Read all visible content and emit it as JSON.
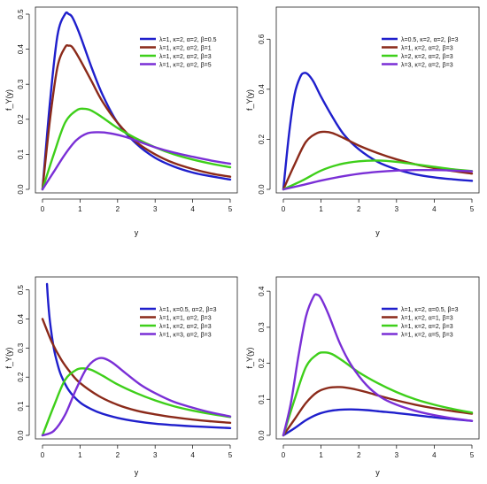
{
  "chart_data": [
    {
      "type": "line",
      "xlabel": "y",
      "ylabel": "f_Y(y)",
      "xlim": [
        0,
        5
      ],
      "ylim": [
        0,
        0.5
      ],
      "xticks": [
        "0",
        "1",
        "2",
        "3",
        "4",
        "5"
      ],
      "yticks": [
        "0.0",
        "0.1",
        "0.2",
        "0.3",
        "0.4",
        "0.5"
      ],
      "legend_position": "top-right",
      "series": [
        {
          "name": "λ=1, κ=2, α=2, β=0.5",
          "color": "#1f1fcc",
          "x": [
            0,
            0.2,
            0.4,
            0.6,
            0.7,
            0.8,
            1.0,
            1.3,
            1.6,
            2.0,
            2.5,
            3.0,
            3.5,
            4.0,
            4.5,
            5.0
          ],
          "y": [
            0,
            0.25,
            0.44,
            0.5,
            0.5,
            0.49,
            0.44,
            0.35,
            0.27,
            0.19,
            0.13,
            0.09,
            0.065,
            0.048,
            0.037,
            0.028
          ]
        },
        {
          "name": "λ=1, κ=2, α=2, β=1",
          "color": "#8b2a1a",
          "x": [
            0,
            0.2,
            0.4,
            0.6,
            0.7,
            0.8,
            1.0,
            1.3,
            1.6,
            2.0,
            2.5,
            3.0,
            3.5,
            4.0,
            4.5,
            5.0
          ],
          "y": [
            0,
            0.2,
            0.35,
            0.405,
            0.41,
            0.405,
            0.37,
            0.31,
            0.25,
            0.19,
            0.135,
            0.1,
            0.075,
            0.058,
            0.045,
            0.036
          ]
        },
        {
          "name": "λ=1, κ=2, α=2, β=3",
          "color": "#3ecf1a",
          "x": [
            0,
            0.3,
            0.6,
            0.9,
            1.1,
            1.3,
            1.6,
            2.0,
            2.5,
            3.0,
            3.5,
            4.0,
            4.5,
            5.0
          ],
          "y": [
            0,
            0.1,
            0.19,
            0.225,
            0.23,
            0.225,
            0.205,
            0.175,
            0.145,
            0.12,
            0.1,
            0.085,
            0.073,
            0.063
          ]
        },
        {
          "name": "λ=1, κ=2, α=2, β=5",
          "color": "#7a2fd6",
          "x": [
            0,
            0.3,
            0.6,
            0.9,
            1.2,
            1.5,
            1.8,
            2.2,
            2.6,
            3.0,
            3.5,
            4.0,
            4.5,
            5.0
          ],
          "y": [
            0,
            0.05,
            0.1,
            0.14,
            0.16,
            0.163,
            0.16,
            0.15,
            0.135,
            0.12,
            0.105,
            0.093,
            0.082,
            0.073
          ]
        }
      ]
    },
    {
      "type": "line",
      "xlabel": "y",
      "ylabel": "f_Y(y)",
      "xlim": [
        0,
        5
      ],
      "ylim": [
        0,
        0.7
      ],
      "xticks": [
        "0",
        "1",
        "2",
        "3",
        "4",
        "5"
      ],
      "yticks": [
        "0.0",
        "0.2",
        "0.4",
        "0.6"
      ],
      "legend_position": "top-right",
      "series": [
        {
          "name": "λ=0.5, κ=2, α=2, β=3",
          "color": "#1f1fcc",
          "x": [
            0,
            0.15,
            0.3,
            0.45,
            0.55,
            0.65,
            0.8,
            1.0,
            1.3,
            1.6,
            2.0,
            2.5,
            3.0,
            3.5,
            4.0,
            4.5,
            5.0
          ],
          "y": [
            0,
            0.22,
            0.38,
            0.45,
            0.465,
            0.46,
            0.43,
            0.37,
            0.29,
            0.22,
            0.16,
            0.11,
            0.08,
            0.06,
            0.048,
            0.04,
            0.034
          ]
        },
        {
          "name": "λ=1, κ=2, α=2, β=3",
          "color": "#8b2a1a",
          "x": [
            0,
            0.3,
            0.6,
            0.9,
            1.1,
            1.3,
            1.6,
            2.0,
            2.5,
            3.0,
            3.5,
            4.0,
            4.5,
            5.0
          ],
          "y": [
            0,
            0.1,
            0.19,
            0.225,
            0.23,
            0.225,
            0.205,
            0.175,
            0.145,
            0.12,
            0.1,
            0.085,
            0.073,
            0.063
          ]
        },
        {
          "name": "λ=2, κ=2, α=2, β=3",
          "color": "#3ecf1a",
          "x": [
            0,
            0.5,
            1.0,
            1.5,
            2.0,
            2.5,
            3.0,
            3.5,
            4.0,
            4.5,
            5.0
          ],
          "y": [
            0,
            0.035,
            0.075,
            0.1,
            0.112,
            0.115,
            0.11,
            0.1,
            0.09,
            0.08,
            0.073
          ]
        },
        {
          "name": "λ=3, κ=2, α=2, β=3",
          "color": "#7a2fd6",
          "x": [
            0,
            0.5,
            1.0,
            1.5,
            2.0,
            2.5,
            3.0,
            3.5,
            4.0,
            4.5,
            5.0
          ],
          "y": [
            0,
            0.017,
            0.035,
            0.05,
            0.062,
            0.07,
            0.075,
            0.077,
            0.077,
            0.075,
            0.072
          ]
        }
      ]
    },
    {
      "type": "line",
      "xlabel": "y",
      "ylabel": "f_Y(y)",
      "xlim": [
        0,
        5
      ],
      "ylim": [
        0,
        0.52
      ],
      "xticks": [
        "0",
        "1",
        "2",
        "3",
        "4",
        "5"
      ],
      "yticks": [
        "0.0",
        "0.1",
        "0.2",
        "0.3",
        "0.4",
        "0.5"
      ],
      "legend_position": "top-right",
      "series": [
        {
          "name": "λ=1, κ=0.5, α=2, β=3",
          "color": "#1f1fcc",
          "x": [
            0.12,
            0.15,
            0.2,
            0.3,
            0.4,
            0.5,
            0.7,
            1.0,
            1.3,
            1.6,
            2.0,
            2.5,
            3.0,
            3.5,
            4.0,
            4.5,
            5.0
          ],
          "y": [
            0.52,
            0.46,
            0.39,
            0.3,
            0.245,
            0.205,
            0.155,
            0.113,
            0.09,
            0.074,
            0.06,
            0.048,
            0.04,
            0.035,
            0.031,
            0.028,
            0.025
          ]
        },
        {
          "name": "λ=1, κ=1, α=2, β=3",
          "color": "#8b2a1a",
          "x": [
            0,
            0.25,
            0.5,
            0.75,
            1.0,
            1.5,
            2.0,
            2.5,
            3.0,
            3.5,
            4.0,
            4.5,
            5.0
          ],
          "y": [
            0.4,
            0.32,
            0.26,
            0.215,
            0.18,
            0.135,
            0.105,
            0.085,
            0.072,
            0.062,
            0.054,
            0.048,
            0.043
          ]
        },
        {
          "name": "λ=1, κ=2, α=2, β=3",
          "color": "#3ecf1a",
          "x": [
            0,
            0.3,
            0.6,
            0.9,
            1.1,
            1.3,
            1.6,
            2.0,
            2.5,
            3.0,
            3.5,
            4.0,
            4.5,
            5.0
          ],
          "y": [
            0,
            0.1,
            0.19,
            0.225,
            0.23,
            0.225,
            0.205,
            0.175,
            0.145,
            0.12,
            0.1,
            0.085,
            0.073,
            0.063
          ]
        },
        {
          "name": "λ=1, κ=3, α=2, β=3",
          "color": "#7a2fd6",
          "x": [
            0,
            0.3,
            0.6,
            0.9,
            1.2,
            1.5,
            1.8,
            2.2,
            2.6,
            3.0,
            3.5,
            4.0,
            4.5,
            5.0
          ],
          "y": [
            0,
            0.015,
            0.07,
            0.16,
            0.235,
            0.265,
            0.255,
            0.215,
            0.175,
            0.145,
            0.115,
            0.095,
            0.078,
            0.065
          ]
        }
      ]
    },
    {
      "type": "line",
      "xlabel": "y",
      "ylabel": "f_Y(y)",
      "xlim": [
        0,
        5
      ],
      "ylim": [
        0,
        0.42
      ],
      "xticks": [
        "0",
        "1",
        "2",
        "3",
        "4",
        "5"
      ],
      "yticks": [
        "0.0",
        "0.1",
        "0.2",
        "0.3",
        "0.4"
      ],
      "legend_position": "top-right",
      "series": [
        {
          "name": "λ=1, κ=2, α=0.5, β=3",
          "color": "#1f1fcc",
          "x": [
            0,
            0.3,
            0.6,
            0.9,
            1.2,
            1.5,
            1.8,
            2.2,
            2.6,
            3.0,
            3.5,
            4.0,
            4.5,
            5.0
          ],
          "y": [
            0,
            0.02,
            0.042,
            0.058,
            0.067,
            0.071,
            0.072,
            0.07,
            0.066,
            0.062,
            0.056,
            0.05,
            0.045,
            0.04
          ]
        },
        {
          "name": "λ=1, κ=2, α=1, β=3",
          "color": "#8b2a1a",
          "x": [
            0,
            0.3,
            0.6,
            0.9,
            1.2,
            1.5,
            1.8,
            2.2,
            2.6,
            3.0,
            3.5,
            4.0,
            4.5,
            5.0
          ],
          "y": [
            0,
            0.045,
            0.09,
            0.12,
            0.132,
            0.134,
            0.13,
            0.12,
            0.108,
            0.097,
            0.085,
            0.075,
            0.067,
            0.06
          ]
        },
        {
          "name": "λ=1, κ=2, α=2, β=3",
          "color": "#3ecf1a",
          "x": [
            0,
            0.3,
            0.6,
            0.9,
            1.1,
            1.3,
            1.6,
            2.0,
            2.5,
            3.0,
            3.5,
            4.0,
            4.5,
            5.0
          ],
          "y": [
            0,
            0.1,
            0.19,
            0.225,
            0.23,
            0.225,
            0.205,
            0.175,
            0.145,
            0.12,
            0.1,
            0.085,
            0.073,
            0.063
          ]
        },
        {
          "name": "λ=1, κ=2, α=5, β=3",
          "color": "#7a2fd6",
          "x": [
            0,
            0.2,
            0.4,
            0.6,
            0.8,
            0.9,
            1.0,
            1.2,
            1.5,
            1.8,
            2.2,
            2.6,
            3.0,
            3.5,
            4.0,
            4.5,
            5.0
          ],
          "y": [
            0,
            0.09,
            0.22,
            0.33,
            0.385,
            0.39,
            0.38,
            0.335,
            0.255,
            0.195,
            0.14,
            0.105,
            0.085,
            0.068,
            0.056,
            0.047,
            0.04
          ]
        }
      ]
    }
  ]
}
